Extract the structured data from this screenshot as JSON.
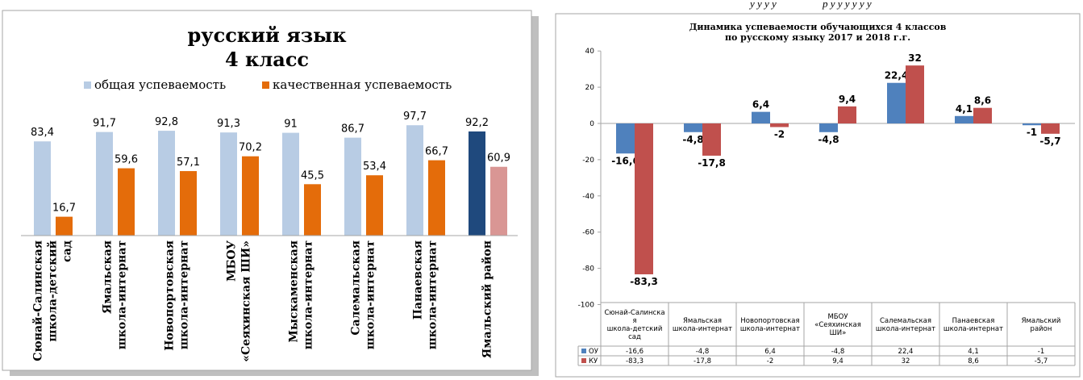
{
  "captions": {
    "left": "у у у у",
    "right": "р у у у у у у"
  },
  "chart_data": [
    {
      "type": "bar",
      "title": "русский язык",
      "subtitle": "4 класс",
      "legend": [
        "общая успеваемость",
        "качественная успеваемость"
      ],
      "legend_position": "top",
      "categories": [
        "Сюнай-Салинская школа-детский сад",
        "Ямальская школа-интернат",
        "Новопортовская школа-интернат",
        "МБОУ «Сеяхинская ШИ»",
        "Мыскаменская школа-интернат",
        "Салемальская школа-интернат",
        "Панаевская школа-интернат",
        "Ямальский район"
      ],
      "category_lines": [
        [
          "Сюнай-Салинская",
          "школа-детский",
          "сад"
        ],
        [
          "Ямальская",
          "школа-интернат"
        ],
        [
          "Новопортовская",
          "школа-интернат"
        ],
        [
          "МБОУ",
          "«Сеяхинская ШИ»"
        ],
        [
          "Мыскаменская",
          "школа-интернат"
        ],
        [
          "Салемальская",
          "школа-интернат"
        ],
        [
          "Панаевская",
          "школа-интернат"
        ],
        [
          "Ямальский район"
        ]
      ],
      "series": [
        {
          "name": "общая успеваемость",
          "values": [
            83.4,
            91.7,
            92.8,
            91.3,
            91,
            86.7,
            97.7,
            92.2
          ],
          "labels": [
            "83,4",
            "91,7",
            "92,8",
            "91,3",
            "91",
            "86,7",
            "97,7",
            "92,2"
          ]
        },
        {
          "name": "качественная успеваемость",
          "values": [
            16.7,
            59.6,
            57.1,
            70.2,
            45.5,
            53.4,
            66.7,
            60.9
          ],
          "labels": [
            "16,7",
            "59,6",
            "57,1",
            "70,2",
            "45,5",
            "53,4",
            "66,7",
            "60,9"
          ]
        }
      ],
      "colors": {
        "series1": "#b8cce4",
        "series2": "#e46c0a",
        "series1_highlight": "#1f497d",
        "series2_highlight": "#d99694"
      },
      "ylim": [
        0,
        100
      ],
      "grid": false
    },
    {
      "type": "bar",
      "title": "Динамика успеваемости обучающихся 4 классов",
      "subtitle": "по русскому языку 2017 и 2018 г.г.",
      "categories": [
        "Сюнай-Салинская школа-детский сад",
        "Ямальская школа-интернат",
        "Новопортовская школа-интернат",
        "МБОУ «Сеяхинская ШИ»",
        "Салемальская школа-интернат",
        "Панаевская школа-интернат",
        "Ямальский район"
      ],
      "category_lines": [
        [
          "Сюнай-Салинска",
          "я",
          "школа-детский",
          "сад"
        ],
        [
          "Ямальская",
          "школа-интернат"
        ],
        [
          "Новопортовская",
          "школа-интернат"
        ],
        [
          "МБОУ",
          "«Сеяхинская",
          "ШИ»"
        ],
        [
          "Салемальская",
          "школа-интернат"
        ],
        [
          "Панаевская",
          "школа-интернат"
        ],
        [
          "Ямальский",
          "район"
        ]
      ],
      "series": [
        {
          "name": "ОУ",
          "values": [
            -16.6,
            -4.8,
            6.4,
            -4.8,
            22.4,
            4.1,
            -1
          ],
          "labels": [
            "-16,6",
            "-4,8",
            "6,4",
            "-4,8",
            "22,4",
            "4,1",
            "-1"
          ]
        },
        {
          "name": "КУ",
          "values": [
            -83.3,
            -17.8,
            -2,
            9.4,
            32,
            8.6,
            -5.7
          ],
          "labels": [
            "-83,3",
            "-17,8",
            "-2",
            "9,4",
            "32",
            "8,6",
            "-5,7"
          ]
        }
      ],
      "colors": {
        "series1": "#4f81bd",
        "series2": "#c0504d"
      },
      "ylim": [
        -100,
        40
      ],
      "yticks": [
        40,
        20,
        0,
        -20,
        -40,
        -60,
        -80,
        -100
      ],
      "grid": false,
      "data_table": true
    }
  ]
}
